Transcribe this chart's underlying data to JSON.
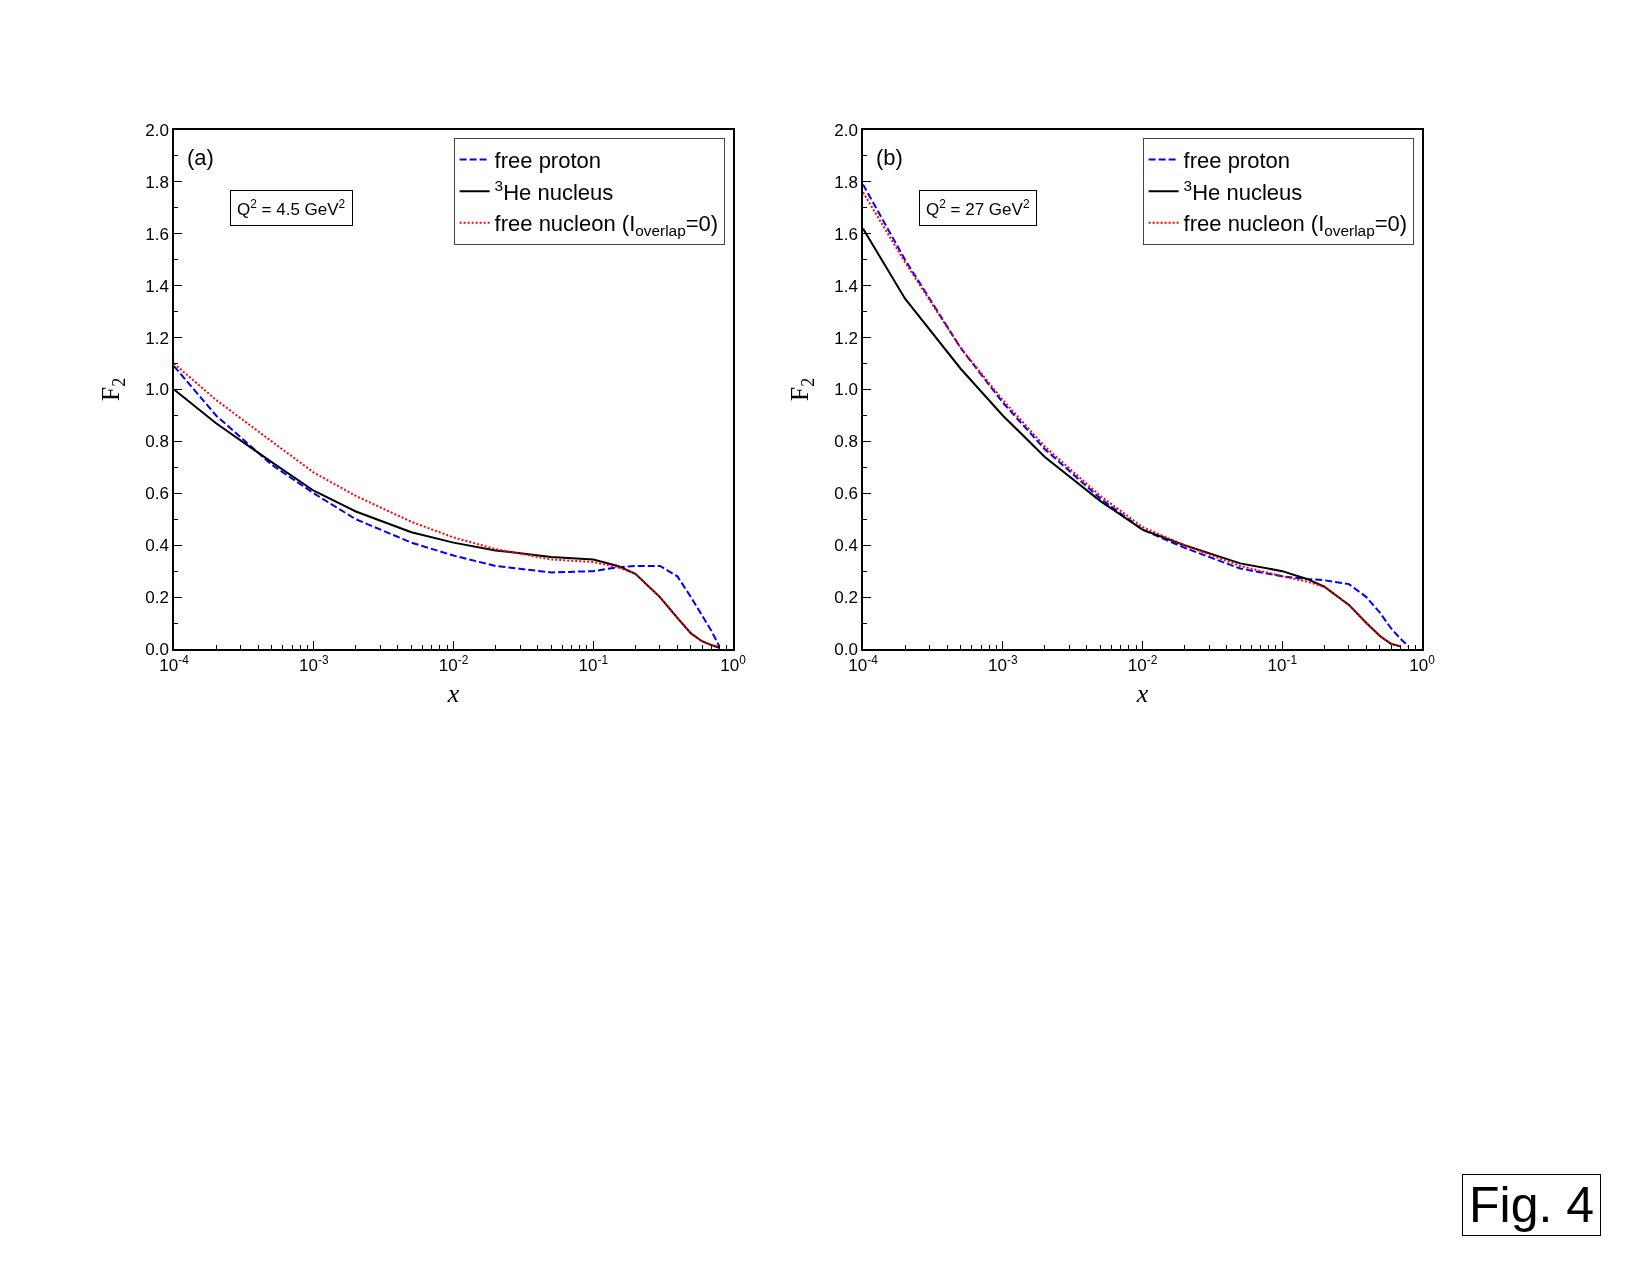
{
  "chart_data": [
    {
      "type": "line",
      "xlabel": "x",
      "ylabel": "F$_{2}$",
      "log": "x",
      "legend": "top right",
      "grid": false,
      "annotations": [
        "(a)",
        "Q$^{2}$ = 4.5 GeV$^{2}$"
      ],
      "xlim": [
        0.0001,
        1
      ],
      "xticks": [
        {
          "value": 0.0001,
          "label": "10$^{-4}$"
        },
        {
          "value": 0.001,
          "label": "10$^{-3}$"
        },
        {
          "value": 0.01,
          "label": "10$^{-2}$"
        },
        {
          "value": 0.1,
          "label": "10$^{-1}$"
        },
        {
          "value": 1,
          "label": "10$^{0}$"
        }
      ],
      "ylim": [
        0,
        2
      ],
      "yticks": [
        {
          "value": 0,
          "label": "0.0"
        },
        0.2,
        0.4,
        0.6,
        0.8,
        {
          "value": 1,
          "label": "1.0"
        },
        1.2,
        1.4,
        1.6,
        1.8,
        {
          "value": 2,
          "label": "2.0"
        }
      ],
      "series": [
        {
          "name": "free proton",
          "color": "#0000ff",
          "line_style": "dashed",
          "x": [
            0.0001,
            0.0002,
            0.0005,
            0.001,
            0.002,
            0.005,
            0.01,
            0.02,
            0.05,
            0.1,
            0.15,
            0.2,
            0.3,
            0.4,
            0.5,
            0.6,
            0.7,
            0.8
          ],
          "values": [
            1.09,
            0.9,
            0.71,
            0.6,
            0.5,
            0.41,
            0.36,
            0.32,
            0.295,
            0.3,
            0.315,
            0.32,
            0.32,
            0.28,
            0.2,
            0.13,
            0.07,
            0.01
          ]
        },
        {
          "name": "$^{3}$He nucleus",
          "color": "#000000",
          "line_style": "solid",
          "x": [
            0.0001,
            0.0002,
            0.0005,
            0.001,
            0.002,
            0.005,
            0.01,
            0.02,
            0.05,
            0.1,
            0.15,
            0.2,
            0.3,
            0.4,
            0.5,
            0.6,
            0.7,
            0.8
          ],
          "values": [
            1.0,
            0.87,
            0.72,
            0.61,
            0.53,
            0.45,
            0.41,
            0.38,
            0.355,
            0.345,
            0.32,
            0.29,
            0.2,
            0.12,
            0.06,
            0.03,
            0.015,
            0.005
          ]
        },
        {
          "name": "free nucleon (I$_{overlap}$=0)",
          "color": "#ff0000",
          "line_style": "dotted",
          "x": [
            0.0001,
            0.0002,
            0.0005,
            0.001,
            0.002,
            0.005,
            0.01,
            0.02,
            0.05,
            0.1,
            0.15,
            0.2,
            0.3,
            0.4,
            0.5,
            0.6,
            0.7,
            0.8
          ],
          "values": [
            1.1,
            0.96,
            0.8,
            0.68,
            0.59,
            0.49,
            0.43,
            0.385,
            0.345,
            0.335,
            0.315,
            0.29,
            0.2,
            0.12,
            0.06,
            0.03,
            0.015,
            0.01
          ]
        }
      ]
    },
    {
      "type": "line",
      "xlabel": "x",
      "ylabel": "F$_{2}$",
      "log": "x",
      "legend": "top right",
      "grid": false,
      "annotations": [
        "(b)",
        "Q$^{2}$ = 27 GeV$^{2}$",
        "Fig. 4"
      ],
      "xlim": [
        0.0001,
        1
      ],
      "xticks": [
        {
          "value": 0.0001,
          "label": "10$^{-4}$"
        },
        {
          "value": 0.001,
          "label": "10$^{-3}$"
        },
        {
          "value": 0.01,
          "label": "10$^{-2}$"
        },
        {
          "value": 0.1,
          "label": "10$^{-1}$"
        },
        {
          "value": 1,
          "label": "10$^{0}$"
        }
      ],
      "ylim": [
        0,
        2
      ],
      "yticks": [
        {
          "value": 0,
          "label": "0.0"
        },
        0.2,
        0.4,
        0.6,
        0.8,
        {
          "value": 1,
          "label": "1.0"
        },
        1.2,
        1.4,
        1.6,
        1.8,
        {
          "value": 2,
          "label": "2.0"
        }
      ],
      "series": [
        {
          "name": "free proton",
          "color": "#0000ff",
          "line_style": "dashed",
          "x": [
            0.0001,
            0.0002,
            0.0005,
            0.001,
            0.002,
            0.005,
            0.01,
            0.02,
            0.05,
            0.1,
            0.15,
            0.2,
            0.3,
            0.4,
            0.5,
            0.6,
            0.7,
            0.8
          ],
          "values": [
            1.79,
            1.5,
            1.16,
            0.95,
            0.77,
            0.58,
            0.46,
            0.39,
            0.31,
            0.28,
            0.27,
            0.265,
            0.25,
            0.2,
            0.14,
            0.08,
            0.04,
            0.01
          ]
        },
        {
          "name": "$^{3}$He nucleus",
          "color": "#000000",
          "line_style": "solid",
          "x": [
            0.0001,
            0.0002,
            0.0005,
            0.001,
            0.002,
            0.005,
            0.01,
            0.02,
            0.05,
            0.1,
            0.15,
            0.2,
            0.3,
            0.4,
            0.5,
            0.6,
            0.7
          ],
          "values": [
            1.62,
            1.35,
            1.08,
            0.9,
            0.74,
            0.57,
            0.46,
            0.4,
            0.33,
            0.3,
            0.27,
            0.24,
            0.17,
            0.1,
            0.05,
            0.02,
            0.01
          ]
        },
        {
          "name": "free nucleon (I$_{overlap}$=0)",
          "color": "#ff0000",
          "line_style": "dotted",
          "x": [
            0.0001,
            0.0002,
            0.0005,
            0.001,
            0.002,
            0.005,
            0.01,
            0.02,
            0.05,
            0.1,
            0.15,
            0.2,
            0.3,
            0.4,
            0.5,
            0.6,
            0.7
          ],
          "values": [
            1.76,
            1.49,
            1.16,
            0.96,
            0.78,
            0.59,
            0.47,
            0.4,
            0.32,
            0.28,
            0.26,
            0.24,
            0.17,
            0.1,
            0.05,
            0.02,
            0.01
          ]
        }
      ]
    }
  ]
}
